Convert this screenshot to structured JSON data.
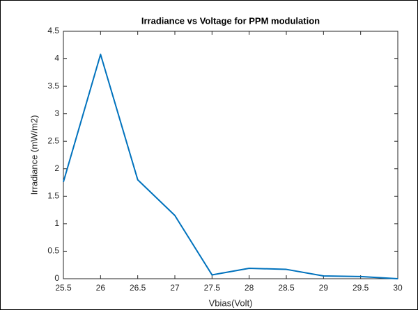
{
  "chart_data": {
    "type": "line",
    "title": "Irradiance vs Voltage for PPM modulation",
    "x_label": "Vbias(Volt)",
    "y_label": "Irradiance (mW/m2)",
    "x": [
      25.5,
      26,
      26.5,
      27,
      27.5,
      28,
      28.5,
      29,
      29.5,
      30
    ],
    "series": [
      {
        "name": "Irradiance",
        "color": "#0072bd",
        "values": [
          1.76,
          4.08,
          1.8,
          1.15,
          0.07,
          0.19,
          0.17,
          0.05,
          0.04,
          0.0
        ]
      }
    ],
    "xlim": [
      25.5,
      30
    ],
    "xticks": [
      25.5,
      26,
      26.5,
      27,
      27.5,
      28,
      28.5,
      29,
      29.5,
      30
    ],
    "ylim": [
      0,
      4.5
    ],
    "yticks": [
      0,
      0.5,
      1,
      1.5,
      2,
      2.5,
      3,
      3.5,
      4,
      4.5
    ],
    "grid": false
  }
}
